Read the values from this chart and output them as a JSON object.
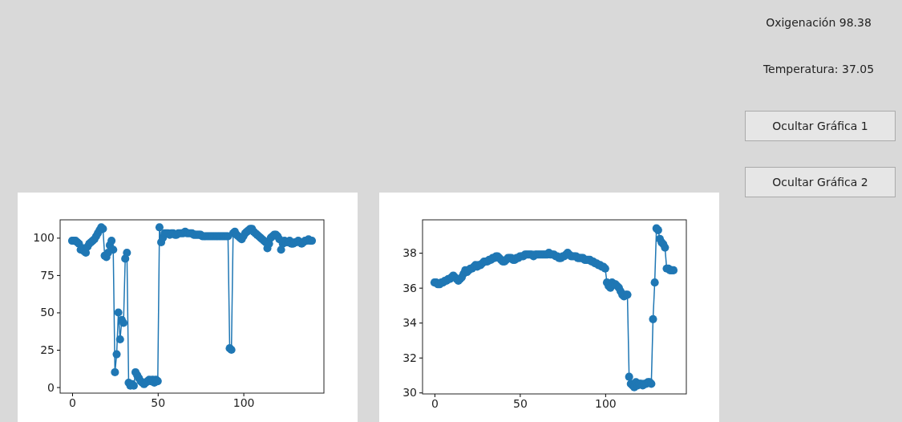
{
  "chart_data": [
    {
      "type": "line",
      "marker": "circle",
      "xlim": [
        -7,
        147
      ],
      "ylim": [
        -4,
        112
      ],
      "xticks": [
        0,
        50,
        100
      ],
      "yticks": [
        0,
        25,
        50,
        75,
        100
      ],
      "series": [
        {
          "color": "#1f77b4",
          "x": [
            0,
            1,
            2,
            3,
            4,
            5,
            6,
            7,
            8,
            9,
            10,
            11,
            12,
            13,
            14,
            15,
            16,
            17,
            18,
            19,
            20,
            21,
            22,
            23,
            24,
            25,
            26,
            27,
            28,
            29,
            30,
            31,
            32,
            33,
            34,
            35,
            36,
            37,
            38,
            39,
            40,
            41,
            42,
            43,
            44,
            45,
            46,
            47,
            48,
            49,
            50,
            51,
            52,
            53,
            54,
            55,
            56,
            57,
            58,
            59,
            60,
            61,
            62,
            63,
            64,
            65,
            66,
            67,
            68,
            69,
            70,
            71,
            72,
            73,
            74,
            75,
            76,
            77,
            78,
            79,
            80,
            81,
            82,
            83,
            84,
            85,
            86,
            87,
            88,
            89,
            90,
            91,
            92,
            93,
            94,
            95,
            96,
            97,
            98,
            99,
            100,
            101,
            102,
            103,
            104,
            105,
            106,
            107,
            108,
            109,
            110,
            111,
            112,
            113,
            114,
            115,
            116,
            117,
            118,
            119,
            120,
            121,
            122,
            123,
            124,
            125,
            126,
            127,
            128,
            129,
            130,
            131,
            132,
            133,
            134,
            135,
            136,
            137,
            138,
            139,
            140
          ],
          "values": [
            98,
            98,
            98,
            97,
            96,
            92,
            93,
            91,
            90,
            94,
            96,
            97,
            98,
            99,
            101,
            103,
            105,
            107,
            106,
            88,
            87,
            90,
            95,
            98,
            92,
            10,
            22,
            50,
            32,
            45,
            43,
            86,
            90,
            3,
            1,
            2,
            1,
            10,
            8,
            6,
            4,
            3,
            2,
            3,
            4,
            5,
            4,
            5,
            3,
            5,
            4,
            107,
            97,
            100,
            103,
            103,
            103,
            102,
            103,
            103,
            102,
            102,
            103,
            103,
            103,
            103,
            104,
            103,
            103,
            103,
            103,
            102,
            102,
            102,
            102,
            102,
            101,
            101,
            101,
            101,
            101,
            101,
            101,
            101,
            101,
            101,
            101,
            101,
            101,
            101,
            101,
            101,
            26,
            25,
            103,
            104,
            102,
            101,
            100,
            99,
            101,
            103,
            104,
            105,
            106,
            106,
            104,
            103,
            102,
            101,
            100,
            99,
            98,
            97,
            93,
            96,
            100,
            101,
            102,
            102,
            101,
            99,
            92,
            96,
            98,
            97,
            97,
            98,
            96,
            96,
            97,
            97,
            98,
            97,
            96,
            97,
            98,
            98,
            99,
            98,
            98
          ]
        }
      ]
    },
    {
      "type": "line",
      "marker": "circle",
      "xlim": [
        -7,
        147.5
      ],
      "ylim": [
        29.92,
        39.89
      ],
      "xticks": [
        0,
        50,
        100
      ],
      "yticks": [
        30,
        32,
        34,
        36,
        38
      ],
      "series": [
        {
          "color": "#1f77b4",
          "x": [
            0,
            1,
            2,
            3,
            4,
            5,
            6,
            7,
            8,
            9,
            10,
            11,
            12,
            13,
            14,
            15,
            16,
            17,
            18,
            19,
            20,
            21,
            22,
            23,
            24,
            25,
            26,
            27,
            28,
            29,
            30,
            31,
            32,
            33,
            34,
            35,
            36,
            37,
            38,
            39,
            40,
            41,
            42,
            43,
            44,
            45,
            46,
            47,
            48,
            49,
            50,
            51,
            52,
            53,
            54,
            55,
            56,
            57,
            58,
            59,
            60,
            61,
            62,
            63,
            64,
            65,
            66,
            67,
            68,
            69,
            70,
            71,
            72,
            73,
            74,
            75,
            76,
            77,
            78,
            79,
            80,
            81,
            82,
            83,
            84,
            85,
            86,
            87,
            88,
            89,
            90,
            91,
            92,
            93,
            94,
            95,
            96,
            97,
            98,
            99,
            100,
            101,
            102,
            103,
            104,
            105,
            106,
            107,
            108,
            109,
            110,
            111,
            112,
            113,
            114,
            115,
            116,
            117,
            118,
            119,
            120,
            121,
            122,
            123,
            124,
            125,
            126,
            127,
            128,
            129,
            130,
            131,
            132,
            133,
            134,
            135,
            136,
            137,
            138,
            139,
            140
          ],
          "values": [
            36.3,
            36.3,
            36.2,
            36.2,
            36.3,
            36.3,
            36.4,
            36.4,
            36.5,
            36.5,
            36.6,
            36.7,
            36.6,
            36.5,
            36.4,
            36.5,
            36.6,
            36.8,
            37.0,
            36.9,
            37.0,
            37.1,
            37.1,
            37.2,
            37.3,
            37.2,
            37.3,
            37.3,
            37.4,
            37.5,
            37.5,
            37.5,
            37.6,
            37.6,
            37.7,
            37.7,
            37.8,
            37.8,
            37.7,
            37.6,
            37.5,
            37.5,
            37.6,
            37.7,
            37.7,
            37.7,
            37.6,
            37.6,
            37.7,
            37.7,
            37.8,
            37.8,
            37.8,
            37.9,
            37.9,
            37.9,
            37.9,
            37.9,
            37.8,
            37.9,
            37.9,
            37.9,
            37.9,
            37.9,
            37.9,
            37.9,
            37.9,
            38.0,
            37.9,
            37.9,
            37.9,
            37.8,
            37.8,
            37.7,
            37.7,
            37.8,
            37.8,
            37.9,
            38.0,
            37.9,
            37.8,
            37.8,
            37.8,
            37.8,
            37.7,
            37.7,
            37.7,
            37.7,
            37.6,
            37.6,
            37.6,
            37.6,
            37.5,
            37.5,
            37.4,
            37.4,
            37.3,
            37.3,
            37.2,
            37.2,
            37.1,
            36.3,
            36.1,
            36.0,
            36.3,
            36.2,
            36.2,
            36.1,
            36.0,
            35.8,
            35.6,
            35.5,
            35.6,
            35.6,
            30.9,
            30.5,
            30.4,
            30.3,
            30.6,
            30.4,
            30.5,
            30.5,
            30.4,
            30.5,
            30.5,
            30.6,
            30.6,
            30.5,
            34.2,
            36.3,
            39.4,
            39.3,
            38.8,
            38.6,
            38.5,
            38.3,
            37.1,
            37.1,
            37.0,
            37.0,
            37.0
          ]
        }
      ]
    },
    {
      "type": "other",
      "annotations": [
        "Oxigenación 98.38",
        "Temperatura: 37.05",
        "Ocultar Gráfica 1",
        "Ocultar Gráfica 2"
      ]
    }
  ]
}
